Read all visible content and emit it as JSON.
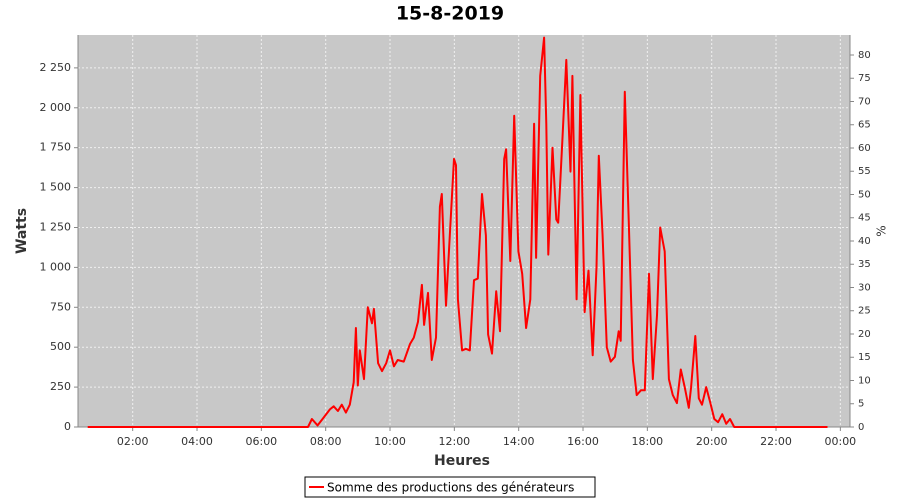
{
  "chart_data": {
    "type": "line",
    "title": "15-8-2019",
    "x_label": "Heures",
    "y_label": "Watts",
    "y2_label": "%",
    "x": [
      0.6,
      7.0,
      7.45,
      7.57,
      7.75,
      7.94,
      8.13,
      8.25,
      8.38,
      8.5,
      8.63,
      8.75,
      8.87,
      8.94,
      9.0,
      9.06,
      9.19,
      9.31,
      9.44,
      9.5,
      9.63,
      9.75,
      9.88,
      10.0,
      10.12,
      10.24,
      10.43,
      10.62,
      10.74,
      10.87,
      10.99,
      11.06,
      11.18,
      11.3,
      11.43,
      11.55,
      11.61,
      11.74,
      11.86,
      11.99,
      12.05,
      12.11,
      12.24,
      12.36,
      12.48,
      12.61,
      12.73,
      12.86,
      12.98,
      13.05,
      13.17,
      13.3,
      13.42,
      13.55,
      13.61,
      13.74,
      13.86,
      13.99,
      14.11,
      14.23,
      14.36,
      14.48,
      14.54,
      14.67,
      14.79,
      14.86,
      14.92,
      15.05,
      15.17,
      15.23,
      15.36,
      15.48,
      15.61,
      15.67,
      15.8,
      15.92,
      16.05,
      16.17,
      16.3,
      16.42,
      16.49,
      16.61,
      16.74,
      16.86,
      16.99,
      17.11,
      17.17,
      17.3,
      17.42,
      17.55,
      17.67,
      17.8,
      17.92,
      18.05,
      18.17,
      18.3,
      18.4,
      18.54,
      18.67,
      18.79,
      18.92,
      19.04,
      19.16,
      19.29,
      19.36,
      19.49,
      19.6,
      19.7,
      19.83,
      19.96,
      20.08,
      20.2,
      20.33,
      20.45,
      20.57,
      20.7,
      23.6
    ],
    "series": [
      {
        "name": "Somme des productions des  générateurs",
        "color": "#ff0000",
        "values": [
          0,
          0,
          0,
          50,
          10,
          60,
          110,
          130,
          100,
          140,
          90,
          140,
          280,
          620,
          260,
          480,
          300,
          750,
          650,
          740,
          400,
          350,
          400,
          480,
          380,
          420,
          410,
          520,
          560,
          660,
          890,
          640,
          840,
          420,
          560,
          1380,
          1460,
          760,
          1200,
          1680,
          1640,
          800,
          480,
          490,
          480,
          920,
          930,
          1460,
          1200,
          580,
          460,
          850,
          600,
          1680,
          1740,
          1040,
          1950,
          1100,
          960,
          620,
          800,
          1900,
          1060,
          2200,
          2440,
          1900,
          1080,
          1750,
          1300,
          1280,
          1800,
          2300,
          1600,
          2200,
          800,
          2080,
          720,
          980,
          450,
          1000,
          1700,
          1200,
          500,
          410,
          440,
          600,
          540,
          2100,
          1300,
          420,
          200,
          230,
          230,
          960,
          300,
          700,
          1250,
          1100,
          300,
          200,
          150,
          360,
          250,
          120,
          250,
          570,
          180,
          140,
          250,
          150,
          50,
          30,
          80,
          20,
          50,
          0,
          0
        ]
      }
    ],
    "xlim": [
      0.3,
      24.3
    ],
    "ylim": [
      0,
      2456
    ],
    "y2lim": [
      0,
      84.3
    ],
    "xticks": [
      {
        "value": 2,
        "label": "02:00"
      },
      {
        "value": 4,
        "label": "04:00"
      },
      {
        "value": 6,
        "label": "06:00"
      },
      {
        "value": 8,
        "label": "08:00"
      },
      {
        "value": 10,
        "label": "10:00"
      },
      {
        "value": 12,
        "label": "12:00"
      },
      {
        "value": 14,
        "label": "14:00"
      },
      {
        "value": 16,
        "label": "16:00"
      },
      {
        "value": 18,
        "label": "18:00"
      },
      {
        "value": 20,
        "label": "20:00"
      },
      {
        "value": 22,
        "label": "22:00"
      },
      {
        "value": 24,
        "label": "00:00"
      }
    ],
    "yticks": [
      0,
      250,
      500,
      750,
      {
        "value": 1000,
        "label": "1 000"
      },
      {
        "value": 1250,
        "label": "1 250"
      },
      {
        "value": 1500,
        "label": "1 500"
      },
      {
        "value": 1750,
        "label": "1 750"
      },
      {
        "value": 2000,
        "label": "2 000"
      },
      {
        "value": 2250,
        "label": "2 250"
      }
    ],
    "y2ticks": [
      0,
      5,
      10,
      15,
      20,
      25,
      30,
      35,
      40,
      45,
      50,
      55,
      60,
      65,
      70,
      75,
      80
    ],
    "grid": true,
    "legend": "bottom"
  }
}
